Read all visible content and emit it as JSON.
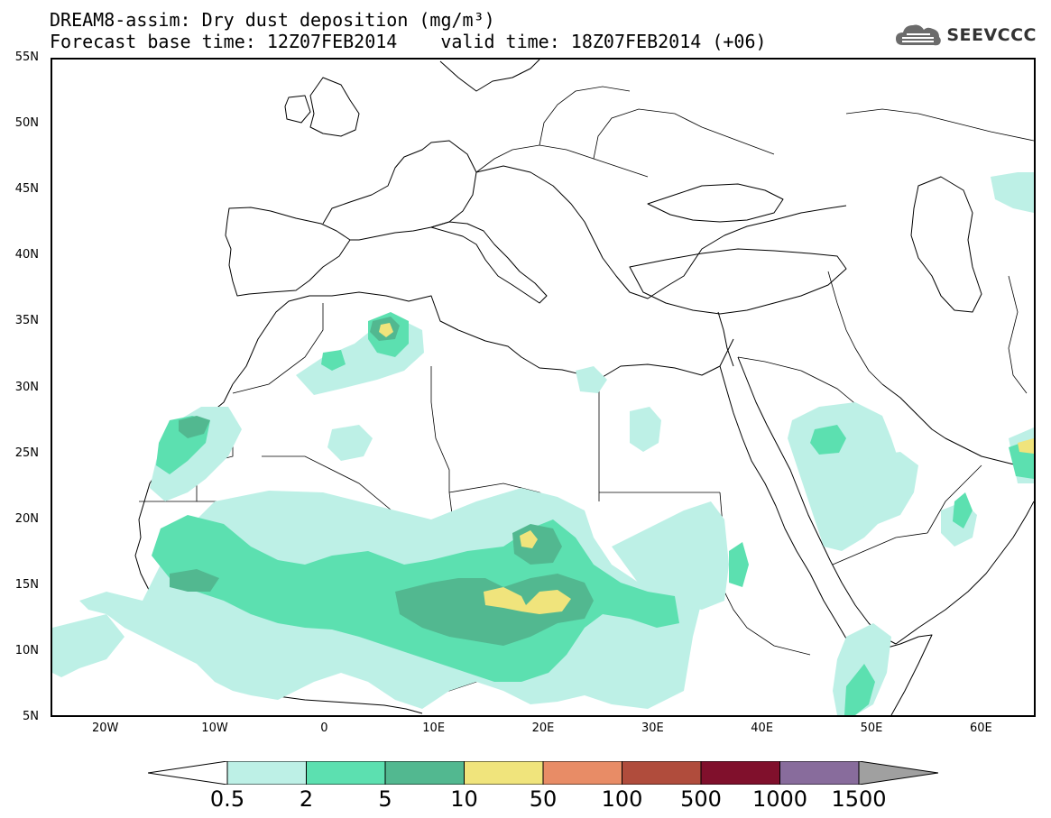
{
  "title": {
    "line1": "DREAM8-assim: Dry dust deposition (mg/m³)",
    "base_time": "Forecast base time: 12Z07FEB2014",
    "valid_time": "valid time: 18Z07FEB2014 (+06)"
  },
  "logo": {
    "text": "SEEVCCC",
    "icon": "cloud-logo-icon"
  },
  "map": {
    "region": "North Africa, Europe and Middle East",
    "projection": "lat-lon",
    "lat_labels": [
      "55N",
      "50N",
      "45N",
      "40N",
      "35N",
      "30N",
      "25N",
      "20N",
      "15N",
      "10N",
      "5N"
    ],
    "lon_labels": [
      "20W",
      "10W",
      "0",
      "10E",
      "20E",
      "30E",
      "40E",
      "50E",
      "60E"
    ],
    "lat_range": [
      5,
      55
    ],
    "lon_range": [
      -25,
      65
    ]
  },
  "legend": {
    "labels": [
      "0.5",
      "2",
      "5",
      "10",
      "50",
      "100",
      "500",
      "1000",
      "1500"
    ],
    "colors": [
      "#bdf0e6",
      "#5ce0b0",
      "#52b890",
      "#f0e47c",
      "#e88c66",
      "#b04c3c",
      "#80102c",
      "#886c9c"
    ],
    "under_color": "#ffffff",
    "over_color": "#a0a0a0"
  }
}
